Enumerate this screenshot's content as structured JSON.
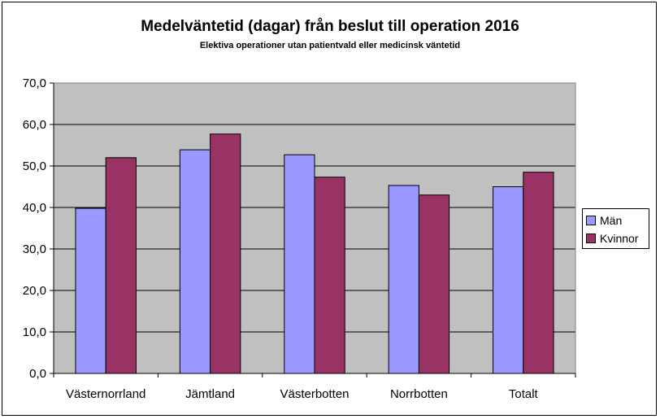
{
  "chart_data": {
    "type": "bar",
    "title": "Medelväntetid (dagar) från beslut till operation 2016",
    "subtitle": "Elektiva operationer utan patientvald eller medicinsk väntetid",
    "categories": [
      "Västernorrland",
      "Jämtland",
      "Västerbotten",
      "Norrbotten",
      "Totalt"
    ],
    "series": [
      {
        "name": "Män",
        "color": "#9999ff",
        "values": [
          39.8,
          53.9,
          52.7,
          45.3,
          45.0
        ]
      },
      {
        "name": "Kvinnor",
        "color": "#993366",
        "values": [
          52.0,
          57.7,
          47.3,
          43.0,
          48.5
        ]
      }
    ],
    "ylim": [
      0,
      70
    ],
    "yticks": [
      "0,0",
      "10,0",
      "20,0",
      "30,0",
      "40,0",
      "50,0",
      "60,0",
      "70,0"
    ],
    "xlabel": "",
    "ylabel": "",
    "grid": true,
    "plot_background": "#c0c0c0",
    "legend_position": "right"
  }
}
